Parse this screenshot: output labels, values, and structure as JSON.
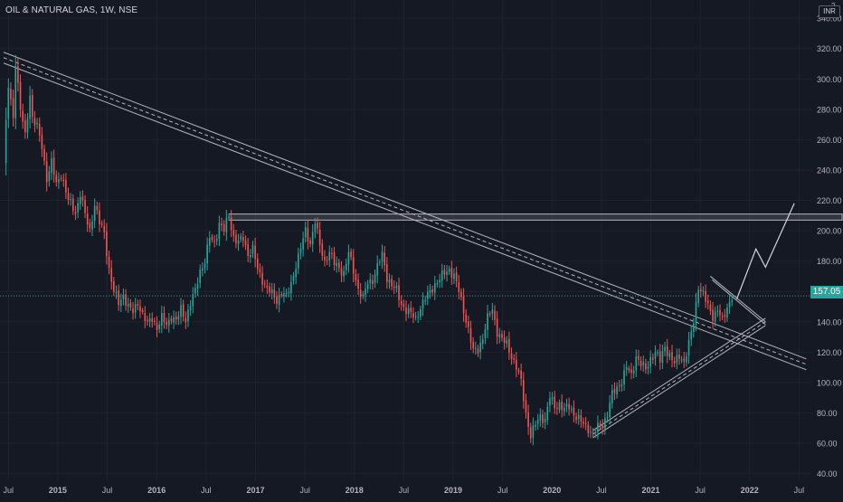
{
  "header": {
    "title": "OIL & NATURAL GAS, 1W, NSE"
  },
  "currency": {
    "label": "INR",
    "top_fragment": "2"
  },
  "last_price": "157.05",
  "colors": {
    "background": "#151924",
    "up": "#26a69a",
    "down": "#ef5350",
    "grid": "#1e222d",
    "axis_text": "#b2b5be",
    "drawing": "#b2b5be"
  },
  "chart_data": {
    "type": "candlestick",
    "title": "OIL & NATURAL GAS, 1W, NSE",
    "ylim": [
      35,
      352
    ],
    "y_ticks": [
      "40.00",
      "60.00",
      "80.00",
      "100.00",
      "120.00",
      "140.00",
      "160.00",
      "180.00",
      "200.00",
      "220.00",
      "240.00",
      "260.00",
      "280.00",
      "300.00",
      "320.00",
      "340.00"
    ],
    "x_ticks": [
      "Jul",
      "2015",
      "Jul",
      "2016",
      "Jul",
      "2017",
      "Jul",
      "2018",
      "Jul",
      "2019",
      "Jul",
      "2020",
      "Jul",
      "2021",
      "Jul",
      "2022",
      "Jul"
    ],
    "last_price": 157.05,
    "path_points": [
      [
        0,
        245
      ],
      [
        2,
        295
      ],
      [
        4,
        275
      ],
      [
        5,
        312
      ],
      [
        7,
        280
      ],
      [
        9,
        262
      ],
      [
        11,
        290
      ],
      [
        12,
        275
      ],
      [
        14,
        268
      ],
      [
        16,
        255
      ],
      [
        18,
        235
      ],
      [
        20,
        245
      ],
      [
        22,
        230
      ],
      [
        24,
        238
      ],
      [
        27,
        220
      ],
      [
        30,
        212
      ],
      [
        32,
        225
      ],
      [
        34,
        210
      ],
      [
        36,
        200
      ],
      [
        38,
        218
      ],
      [
        40,
        205
      ],
      [
        42,
        198
      ],
      [
        44,
        175
      ],
      [
        46,
        160
      ],
      [
        48,
        152
      ],
      [
        50,
        158
      ],
      [
        52,
        150
      ],
      [
        54,
        146
      ],
      [
        56,
        153
      ],
      [
        58,
        145
      ],
      [
        60,
        138
      ],
      [
        62,
        143
      ],
      [
        64,
        136
      ],
      [
        66,
        142
      ],
      [
        68,
        138
      ],
      [
        70,
        144
      ],
      [
        72,
        140
      ],
      [
        74,
        148
      ],
      [
        76,
        142
      ],
      [
        78,
        152
      ],
      [
        80,
        160
      ],
      [
        82,
        174
      ],
      [
        84,
        180
      ],
      [
        86,
        195
      ],
      [
        88,
        192
      ],
      [
        90,
        205
      ],
      [
        92,
        200
      ],
      [
        94,
        210
      ],
      [
        96,
        196
      ],
      [
        98,
        192
      ],
      [
        100,
        195
      ],
      [
        102,
        185
      ],
      [
        104,
        188
      ],
      [
        106,
        174
      ],
      [
        108,
        168
      ],
      [
        110,
        162
      ],
      [
        112,
        158
      ],
      [
        114,
        154
      ],
      [
        116,
        160
      ],
      [
        118,
        156
      ],
      [
        120,
        165
      ],
      [
        122,
        178
      ],
      [
        124,
        188
      ],
      [
        126,
        200
      ],
      [
        128,
        192
      ],
      [
        130,
        206
      ],
      [
        132,
        190
      ],
      [
        134,
        180
      ],
      [
        136,
        186
      ],
      [
        138,
        178
      ],
      [
        140,
        176
      ],
      [
        142,
        172
      ],
      [
        144,
        185
      ],
      [
        146,
        174
      ],
      [
        148,
        162
      ],
      [
        150,
        155
      ],
      [
        152,
        166
      ],
      [
        154,
        168
      ],
      [
        156,
        176
      ],
      [
        158,
        184
      ],
      [
        160,
        170
      ],
      [
        162,
        164
      ],
      [
        164,
        160
      ],
      [
        166,
        152
      ],
      [
        168,
        148
      ],
      [
        170,
        145
      ],
      [
        172,
        142
      ],
      [
        174,
        150
      ],
      [
        176,
        155
      ],
      [
        178,
        160
      ],
      [
        180,
        165
      ],
      [
        182,
        168
      ],
      [
        184,
        172
      ],
      [
        186,
        175
      ],
      [
        188,
        170
      ],
      [
        190,
        160
      ],
      [
        192,
        148
      ],
      [
        194,
        135
      ],
      [
        196,
        120
      ],
      [
        198,
        122
      ],
      [
        200,
        130
      ],
      [
        202,
        142
      ],
      [
        204,
        148
      ],
      [
        206,
        134
      ],
      [
        208,
        128
      ],
      [
        210,
        125
      ],
      [
        212,
        118
      ],
      [
        214,
        110
      ],
      [
        216,
        100
      ],
      [
        218,
        80
      ],
      [
        220,
        65
      ],
      [
        222,
        72
      ],
      [
        224,
        78
      ],
      [
        226,
        76
      ],
      [
        228,
        90
      ],
      [
        230,
        84
      ],
      [
        232,
        86
      ],
      [
        234,
        82
      ],
      [
        236,
        84
      ],
      [
        238,
        80
      ],
      [
        240,
        76
      ],
      [
        242,
        72
      ],
      [
        244,
        70
      ],
      [
        246,
        66
      ],
      [
        248,
        70
      ],
      [
        250,
        72
      ],
      [
        252,
        80
      ],
      [
        254,
        92
      ],
      [
        256,
        96
      ],
      [
        258,
        102
      ],
      [
        260,
        110
      ],
      [
        262,
        104
      ],
      [
        264,
        118
      ],
      [
        266,
        112
      ],
      [
        268,
        108
      ],
      [
        270,
        116
      ],
      [
        272,
        120
      ],
      [
        274,
        114
      ],
      [
        276,
        124
      ],
      [
        278,
        118
      ],
      [
        280,
        112
      ],
      [
        282,
        118
      ],
      [
        284,
        114
      ],
      [
        286,
        125
      ],
      [
        288,
        140
      ],
      [
        290,
        164
      ],
      [
        292,
        158
      ],
      [
        294,
        150
      ],
      [
        296,
        144
      ],
      [
        298,
        148
      ],
      [
        300,
        140
      ],
      [
        302,
        150
      ],
      [
        304,
        157
      ]
    ],
    "series": [
      {
        "ohlc": "weekly candles derived from path_points",
        "up_color": "#26a69a",
        "down_color": "#ef5350"
      }
    ],
    "drawings": {
      "descending_channel": {
        "from": [
          0,
          314
        ],
        "to": [
          335,
          112
        ]
      },
      "horizontal_resistance": {
        "from": [
          94,
          211
        ],
        "to": [
          350,
          207
        ]
      },
      "rising_channel": {
        "from": [
          246,
          66
        ],
        "to": [
          318,
          140
        ]
      },
      "pennant": {
        "from": [
          295,
          170
        ],
        "apex": [
          318,
          140
        ]
      },
      "projection": [
        [
          306,
          155
        ],
        [
          314,
          188
        ],
        [
          318,
          176
        ],
        [
          330,
          218
        ]
      ]
    },
    "x_index_range": [
      0,
      336
    ]
  }
}
